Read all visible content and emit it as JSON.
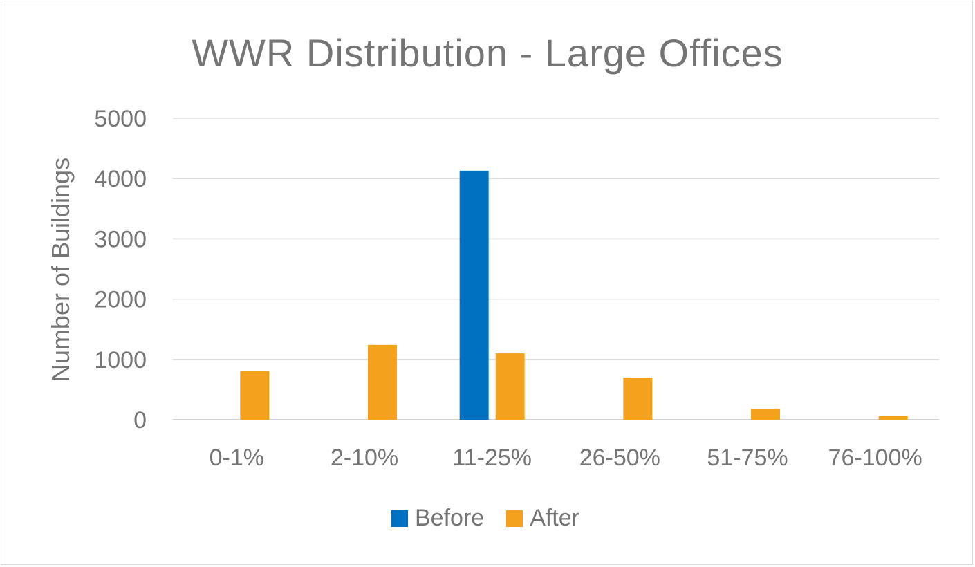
{
  "chart_data": {
    "type": "bar",
    "title": "WWR Distribution - Large Offices",
    "xlabel": "",
    "ylabel": "Number of Buildings",
    "categories": [
      "0-1%",
      "2-10%",
      "11-25%",
      "26-50%",
      "51-75%",
      "76-100%"
    ],
    "series": [
      {
        "name": "Before",
        "color": "#0070C0",
        "values": [
          0,
          0,
          4130,
          0,
          0,
          0
        ]
      },
      {
        "name": "After",
        "color": "#F4A21E",
        "values": [
          810,
          1240,
          1100,
          700,
          180,
          60
        ]
      }
    ],
    "ylim": [
      0,
      5000
    ],
    "yticks": [
      0,
      1000,
      2000,
      3000,
      4000,
      5000
    ],
    "grid": true,
    "legend": "bottom"
  }
}
